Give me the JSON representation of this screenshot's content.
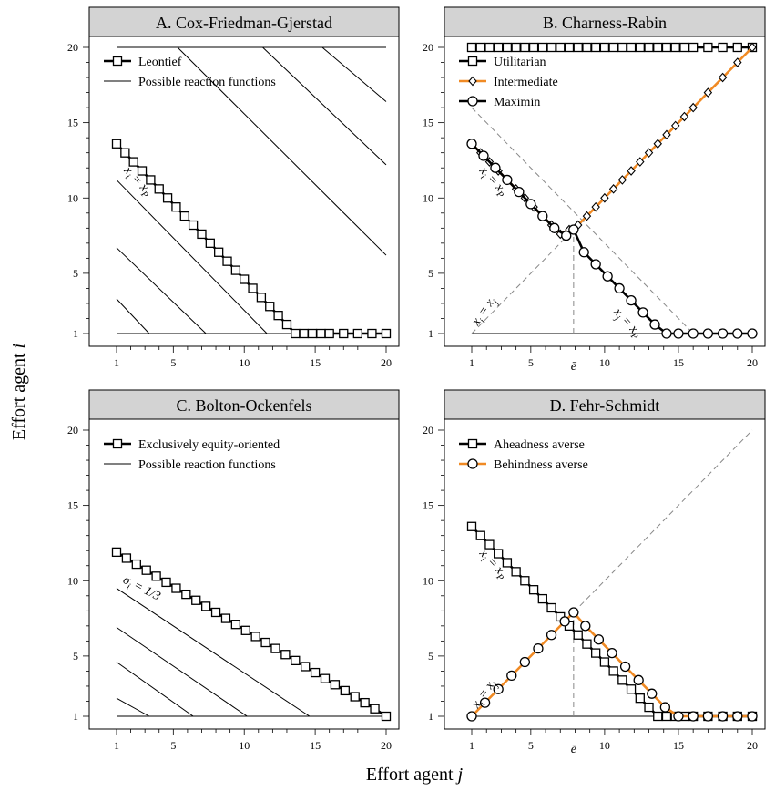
{
  "figure": {
    "xlabel": "Effort agent j",
    "ylabel": "Effort agent i"
  },
  "chart_data": [
    {
      "type": "line",
      "title": "A. Cox-Friedman-Gjerstad",
      "xlim": [
        1,
        20
      ],
      "ylim": [
        1,
        20
      ],
      "xticks": [
        1,
        5,
        10,
        15,
        20
      ],
      "yticks": [
        1,
        5,
        10,
        15,
        20
      ],
      "legend_position": "top-left",
      "legend": [
        {
          "label": "Leontief",
          "style": "line-square"
        },
        {
          "label": "Possible reaction functions",
          "style": "thin-line"
        }
      ],
      "reference_lines": [
        {
          "x": [
            1,
            20
          ],
          "y": [
            20,
            20
          ],
          "style": "thin"
        },
        {
          "x": [
            1,
            20
          ],
          "y": [
            1,
            1
          ],
          "style": "thin"
        },
        {
          "x": [
            1,
            3.3
          ],
          "y": [
            3.3,
            1
          ],
          "style": "thin"
        },
        {
          "x": [
            1,
            7.3
          ],
          "y": [
            6.7,
            1
          ],
          "style": "thin"
        },
        {
          "x": [
            1,
            11.6
          ],
          "y": [
            11.2,
            1
          ],
          "style": "thin"
        },
        {
          "x": [
            5.3,
            20
          ],
          "y": [
            20,
            6.2
          ],
          "style": "thin"
        },
        {
          "x": [
            11.3,
            20
          ],
          "y": [
            20,
            12.2
          ],
          "style": "thin"
        },
        {
          "x": [
            15.5,
            20
          ],
          "y": [
            20,
            16.4
          ],
          "style": "thin"
        }
      ],
      "series": [
        {
          "name": "Leontief",
          "marker": "square",
          "color": "#000000",
          "x": [
            1,
            1.6,
            2.2,
            2.8,
            3.4,
            4.0,
            4.6,
            5.2,
            5.8,
            6.4,
            7.0,
            7.6,
            8.2,
            8.8,
            9.4,
            10.0,
            10.6,
            11.2,
            11.8,
            12.4,
            13.0,
            13.6,
            14.2,
            14.8,
            15.4,
            16.0,
            17.0,
            18.0,
            19.0,
            20.0
          ],
          "y": [
            13.6,
            13.0,
            12.4,
            11.8,
            11.2,
            10.6,
            10.0,
            9.4,
            8.8,
            8.2,
            7.6,
            7.0,
            6.4,
            5.8,
            5.2,
            4.6,
            4.0,
            3.4,
            2.8,
            2.2,
            1.6,
            1.0,
            1.0,
            1.0,
            1.0,
            1.0,
            1.0,
            1.0,
            1.0,
            1.0
          ]
        }
      ],
      "annotations": [
        {
          "text": "xi = xP",
          "base": "x",
          "sub": "i",
          "rest": " = x",
          "sub2": "P",
          "x": 1.5,
          "y": 11.8,
          "angle": 47
        }
      ]
    },
    {
      "type": "line",
      "title": "B. Charness-Rabin",
      "xlim": [
        1,
        20
      ],
      "ylim": [
        1,
        20
      ],
      "xticks": [
        1,
        5,
        10,
        15,
        20
      ],
      "yticks": [
        1,
        5,
        10,
        15,
        20
      ],
      "extra_xtick": {
        "label": "ē",
        "x": 7.9
      },
      "legend_position": "top-left",
      "legend": [
        {
          "label": "Utilitarian",
          "style": "line-square"
        },
        {
          "label": "Intermediate",
          "style": "orange-diamond"
        },
        {
          "label": "Maximin",
          "style": "line-circle"
        }
      ],
      "reference_lines": [
        {
          "x": [
            1,
            20
          ],
          "y": [
            1,
            1
          ],
          "style": "thin"
        },
        {
          "x": [
            1,
            16
          ],
          "y": [
            16,
            1
          ],
          "style": "dashed"
        },
        {
          "x": [
            1,
            7.9
          ],
          "y": [
            1,
            7.9
          ],
          "style": "dashed"
        },
        {
          "x": [
            7.9,
            7.9
          ],
          "y": [
            1,
            7.9
          ],
          "style": "dashed"
        }
      ],
      "series": [
        {
          "name": "Utilitarian",
          "marker": "square",
          "color": "#000000",
          "x": [
            1,
            1.6,
            2.2,
            2.8,
            3.4,
            4.0,
            4.6,
            5.2,
            5.8,
            6.4,
            7.0,
            7.6,
            8.2,
            8.8,
            9.4,
            10.0,
            10.6,
            11.2,
            11.8,
            12.4,
            13.0,
            13.6,
            14.2,
            14.8,
            15.4,
            16.0,
            17.0,
            18.0,
            19.0,
            20.0
          ],
          "y": [
            20,
            20,
            20,
            20,
            20,
            20,
            20,
            20,
            20,
            20,
            20,
            20,
            20,
            20,
            20,
            20,
            20,
            20,
            20,
            20,
            20,
            20,
            20,
            20,
            20,
            20,
            20,
            20,
            20,
            20
          ]
        },
        {
          "name": "Intermediate",
          "marker": "diamond",
          "color": "#f08a24",
          "x": [
            1,
            1.6,
            2.2,
            2.8,
            3.4,
            4.0,
            4.6,
            5.2,
            5.8,
            6.4,
            7.0,
            7.6,
            7.9,
            8.2,
            8.8,
            9.4,
            10.0,
            10.6,
            11.2,
            11.8,
            12.4,
            13.0,
            13.6,
            14.2,
            14.8,
            15.4,
            16.0,
            17.0,
            18.0,
            19.0,
            20.0
          ],
          "y": [
            13.6,
            13.0,
            12.4,
            11.8,
            11.2,
            10.6,
            10.0,
            9.4,
            8.8,
            8.2,
            7.6,
            7.9,
            7.9,
            8.2,
            8.8,
            9.4,
            10.0,
            10.6,
            11.2,
            11.8,
            12.4,
            13.0,
            13.6,
            14.2,
            14.8,
            15.4,
            16.0,
            17.0,
            18.0,
            19.0,
            20.0
          ]
        },
        {
          "name": "Maximin",
          "marker": "circle",
          "color": "#000000",
          "x": [
            1,
            1.8,
            2.6,
            3.4,
            4.2,
            5.0,
            5.8,
            6.6,
            7.4,
            7.9,
            8.6,
            9.4,
            10.2,
            11.0,
            11.8,
            12.6,
            13.4,
            14.2,
            15.0,
            16.0,
            17.0,
            18.0,
            19.0,
            20.0
          ],
          "y": [
            13.6,
            12.8,
            12.0,
            11.2,
            10.4,
            9.6,
            8.8,
            8.0,
            7.5,
            7.9,
            6.4,
            5.6,
            4.8,
            4.0,
            3.2,
            2.4,
            1.6,
            1.0,
            1.0,
            1.0,
            1.0,
            1.0,
            1.0,
            1.0
          ]
        }
      ],
      "annotations": [
        {
          "text": "xi = xP",
          "base": "x",
          "sub": "i",
          "rest": " = x",
          "sub2": "P",
          "x": 1.5,
          "y": 11.8,
          "angle": 47
        },
        {
          "text": "xj = xP",
          "base": "x",
          "sub": "j",
          "rest": " = x",
          "sub2": "P",
          "x": 10.6,
          "y": 2.4,
          "angle": 47
        },
        {
          "text": "xi = xj",
          "base": "x",
          "sub": "i",
          "rest": " = x",
          "sub2": "j",
          "x": 1.4,
          "y": 1.5,
          "angle": -55
        }
      ]
    },
    {
      "type": "line",
      "title": "C. Bolton-Ockenfels",
      "xlim": [
        1,
        20
      ],
      "ylim": [
        1,
        20
      ],
      "xticks": [
        1,
        5,
        10,
        15,
        20
      ],
      "yticks": [
        1,
        5,
        10,
        15,
        20
      ],
      "legend_position": "top-left",
      "legend": [
        {
          "label": "Exclusively equity-oriented",
          "style": "line-square"
        },
        {
          "label": "Possible reaction functions",
          "style": "thin-line"
        }
      ],
      "reference_lines": [
        {
          "x": [
            1,
            20
          ],
          "y": [
            1,
            1
          ],
          "style": "thin"
        },
        {
          "x": [
            1,
            3.3
          ],
          "y": [
            2.2,
            1
          ],
          "style": "thin"
        },
        {
          "x": [
            1,
            6.4
          ],
          "y": [
            4.6,
            1
          ],
          "style": "thin"
        },
        {
          "x": [
            1,
            10.2
          ],
          "y": [
            6.9,
            1
          ],
          "style": "thin"
        },
        {
          "x": [
            1,
            14.6
          ],
          "y": [
            9.5,
            1
          ],
          "style": "thin"
        }
      ],
      "series": [
        {
          "name": "Exclusively equity-oriented",
          "marker": "square",
          "color": "#000000",
          "x": [
            1,
            1.7,
            2.4,
            3.1,
            3.8,
            4.5,
            5.2,
            5.9,
            6.6,
            7.3,
            8.0,
            8.7,
            9.4,
            10.1,
            10.8,
            11.5,
            12.2,
            12.9,
            13.6,
            14.3,
            15.0,
            15.7,
            16.4,
            17.1,
            17.8,
            18.5,
            19.2,
            20.0
          ],
          "y": [
            11.9,
            11.5,
            11.1,
            10.7,
            10.3,
            9.9,
            9.5,
            9.1,
            8.7,
            8.3,
            7.9,
            7.5,
            7.1,
            6.7,
            6.3,
            5.9,
            5.5,
            5.1,
            4.7,
            4.3,
            3.9,
            3.5,
            3.1,
            2.7,
            2.3,
            1.9,
            1.5,
            1.0
          ]
        }
      ],
      "annotations": [
        {
          "text": "σi = 1/3",
          "base": "σ",
          "sub": "i",
          "rest": " = 1/3",
          "sub2": "",
          "x": 1.4,
          "y": 9.9,
          "angle": 27
        }
      ]
    },
    {
      "type": "line",
      "title": "D. Fehr-Schmidt",
      "xlim": [
        1,
        20
      ],
      "ylim": [
        1,
        20
      ],
      "xticks": [
        1,
        5,
        10,
        15,
        20
      ],
      "yticks": [
        1,
        5,
        10,
        15,
        20
      ],
      "extra_xtick": {
        "label": "ē",
        "x": 7.9
      },
      "legend_position": "top-left",
      "legend": [
        {
          "label": "Aheadness averse",
          "style": "line-square"
        },
        {
          "label": "Behindness averse",
          "style": "orange-circle"
        }
      ],
      "reference_lines": [
        {
          "x": [
            1,
            20
          ],
          "y": [
            1,
            1
          ],
          "style": "thin"
        },
        {
          "x": [
            7.9,
            20
          ],
          "y": [
            7.9,
            20
          ],
          "style": "dashed"
        },
        {
          "x": [
            7.9,
            7.9
          ],
          "y": [
            1,
            7.9
          ],
          "style": "dashed"
        }
      ],
      "series": [
        {
          "name": "Aheadness averse",
          "marker": "square",
          "color": "#000000",
          "x": [
            1,
            1.6,
            2.2,
            2.8,
            3.4,
            4.0,
            4.6,
            5.2,
            5.8,
            6.4,
            7.0,
            7.6,
            8.2,
            8.8,
            9.4,
            10.0,
            10.6,
            11.2,
            11.8,
            12.4,
            13.0,
            13.6,
            14.2,
            14.8,
            15.4,
            16.0,
            17.0,
            18.0,
            19.0,
            20.0
          ],
          "y": [
            13.6,
            13.0,
            12.4,
            11.8,
            11.2,
            10.6,
            10.0,
            9.4,
            8.8,
            8.2,
            7.6,
            7.0,
            6.4,
            5.8,
            5.2,
            4.6,
            4.0,
            3.4,
            2.8,
            2.2,
            1.6,
            1.0,
            1.0,
            1.0,
            1.0,
            1.0,
            1.0,
            1.0,
            1.0,
            1.0
          ]
        },
        {
          "name": "Behindness averse",
          "marker": "circle",
          "color": "#f08a24",
          "x": [
            1,
            1.9,
            2.8,
            3.7,
            4.6,
            5.5,
            6.4,
            7.3,
            7.9,
            8.7,
            9.6,
            10.5,
            11.4,
            12.3,
            13.2,
            14.1,
            15.0,
            16.0,
            17.0,
            18.0,
            19.0,
            20.0
          ],
          "y": [
            1,
            1.9,
            2.8,
            3.7,
            4.6,
            5.5,
            6.4,
            7.3,
            7.9,
            7.0,
            6.1,
            5.2,
            4.3,
            3.4,
            2.5,
            1.6,
            1.0,
            1.0,
            1.0,
            1.0,
            1.0,
            1.0
          ]
        }
      ],
      "annotations": [
        {
          "text": "xi = xP",
          "base": "x",
          "sub": "i",
          "rest": " = x",
          "sub2": "P",
          "x": 1.5,
          "y": 11.8,
          "angle": 47
        },
        {
          "text": "xi = xj",
          "base": "x",
          "sub": "i",
          "rest": " = x",
          "sub2": "j",
          "x": 1.4,
          "y": 1.5,
          "angle": -55
        }
      ]
    }
  ]
}
